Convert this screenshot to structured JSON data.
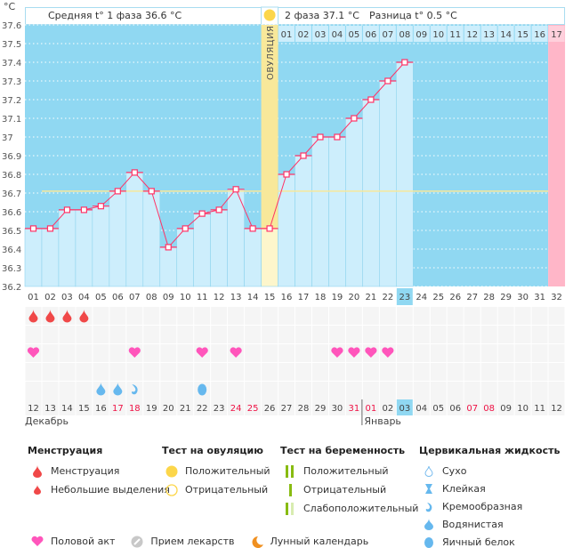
{
  "header": {
    "unit": "°C",
    "phase1": "Средняя t° 1 фаза 36.6 °C",
    "phase2": "2 фаза 37.1 °C",
    "difference": "Разница t° 0.5 °C",
    "ovulation_label": "ОВУЛЯЦИЯ"
  },
  "chart_data": {
    "type": "bar",
    "ylim": [
      36.2,
      37.6
    ],
    "yticks": [
      "37.6",
      "37.5",
      "37.4",
      "37.3",
      "37.2",
      "37.1",
      "37",
      "36.9",
      "36.8",
      "36.7",
      "36.6",
      "36.5",
      "36.4",
      "36.3",
      "36.2"
    ],
    "grid": true,
    "cycle_days": [
      "01",
      "02",
      "03",
      "04",
      "05",
      "06",
      "07",
      "08",
      "09",
      "10",
      "11",
      "12",
      "13",
      "14",
      "15",
      "16",
      "17",
      "18",
      "19",
      "20",
      "21",
      "22",
      "23",
      "24",
      "25",
      "26",
      "27",
      "28",
      "29",
      "30",
      "31",
      "32"
    ],
    "temperatures": [
      36.51,
      36.51,
      36.61,
      36.61,
      36.63,
      36.71,
      36.81,
      36.71,
      36.41,
      36.51,
      36.59,
      36.61,
      36.72,
      36.51,
      36.51,
      36.8,
      36.9,
      37.0,
      37.0,
      37.1,
      37.2,
      37.3,
      37.4
    ],
    "coverline": 36.71,
    "ovulation_day": 15,
    "current_day": 23,
    "post_ovulation_days": [
      "01",
      "02",
      "03",
      "04",
      "05",
      "06",
      "07",
      "08",
      "09",
      "10",
      "11",
      "12",
      "13",
      "14",
      "15",
      "16",
      "17"
    ],
    "dates": [
      "12",
      "13",
      "14",
      "15",
      "16",
      "17",
      "18",
      "19",
      "20",
      "21",
      "22",
      "23",
      "24",
      "25",
      "26",
      "27",
      "28",
      "29",
      "30",
      "31",
      "01",
      "02",
      "03",
      "04",
      "05",
      "06",
      "07",
      "08",
      "09",
      "10",
      "11",
      "12"
    ],
    "holiday_date_indices": [
      5,
      6,
      12,
      13,
      19,
      20,
      26,
      27
    ],
    "months": [
      "Декабрь",
      "Январь"
    ],
    "menstruation_days": [
      1,
      2,
      3,
      4
    ],
    "intercourse_days": [
      1,
      7,
      11,
      13,
      19,
      20,
      21,
      22
    ],
    "cervical": [
      {
        "day": 5,
        "type": "watery"
      },
      {
        "day": 6,
        "type": "watery"
      },
      {
        "day": 7,
        "type": "creamy"
      },
      {
        "day": 11,
        "type": "egg-white"
      }
    ]
  },
  "colors": {
    "sky": "#90d8f2",
    "bar": "#cdeefc",
    "line": "#ff3366",
    "ovulation": "#f8e89a",
    "pink": "#ffb6c8",
    "holiday": "#ee1144",
    "highlight": "#90d8f2"
  },
  "legend": {
    "menstruation": {
      "title": "Менструация",
      "items": [
        "Менструация",
        "Небольшие выделения"
      ]
    },
    "ovulation_test": {
      "title": "Тест на овуляцию",
      "items": [
        "Положительный",
        "Отрицательный"
      ]
    },
    "pregnancy_test": {
      "title": "Тест на беременность",
      "items": [
        "Положительный",
        "Отрицательный",
        "Слабоположительный"
      ]
    },
    "cervical": {
      "title": "Цервикальная жидкость",
      "items": [
        "Сухо",
        "Клейкая",
        "Кремообразная",
        "Водянистая",
        "Яичный белок"
      ]
    },
    "bottom": [
      "Половой акт",
      "Прием лекарств",
      "Лунный календарь"
    ]
  }
}
